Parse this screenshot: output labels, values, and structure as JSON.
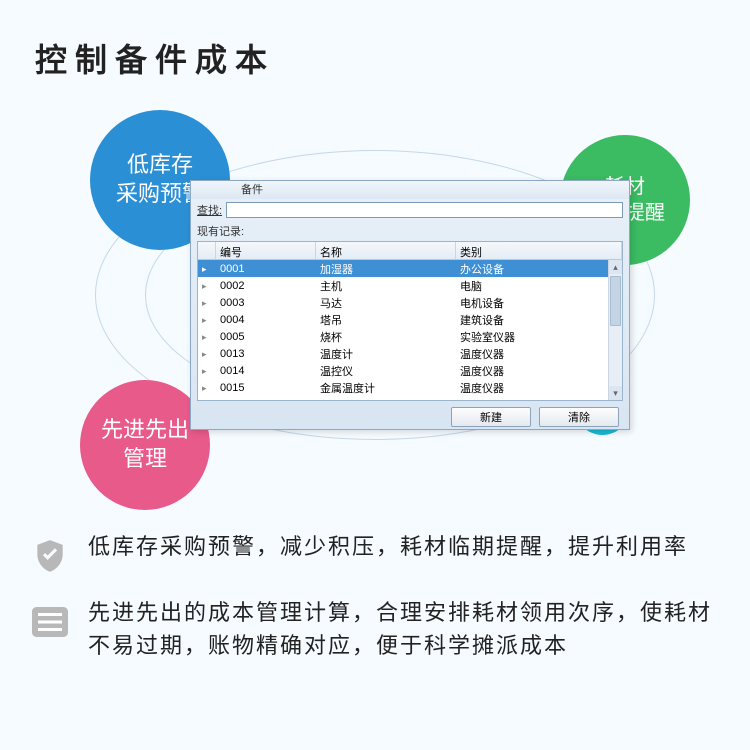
{
  "title": "控制备件成本",
  "bubbles": {
    "blue": {
      "line1": "低库存",
      "line2": "采购预警",
      "color": "#2a8fd4"
    },
    "green": {
      "line1": "耗材",
      "line2": "临期提醒",
      "color": "#3bbb62"
    },
    "pink": {
      "line1": "先进先出",
      "line2": "管理",
      "color": "#e85a8a"
    },
    "cyan": {
      "color": "#1cb8d4"
    }
  },
  "dialog": {
    "title": "备件",
    "search_label": "查找:",
    "search_value": "",
    "records_label": "现有记录:",
    "columns": {
      "id": "编号",
      "name": "名称",
      "cat": "类别"
    },
    "rows": [
      {
        "id": "0001",
        "name": "加湿器",
        "cat": "办公设备",
        "selected": true
      },
      {
        "id": "0002",
        "name": "主机",
        "cat": "电脑",
        "selected": false
      },
      {
        "id": "0003",
        "name": "马达",
        "cat": "电机设备",
        "selected": false
      },
      {
        "id": "0004",
        "name": "塔吊",
        "cat": "建筑设备",
        "selected": false
      },
      {
        "id": "0005",
        "name": "烧杯",
        "cat": "实验室仪器",
        "selected": false
      },
      {
        "id": "0013",
        "name": "温度计",
        "cat": "温度仪器",
        "selected": false
      },
      {
        "id": "0014",
        "name": "温控仪",
        "cat": "温度仪器",
        "selected": false
      },
      {
        "id": "0015",
        "name": "金属温度计",
        "cat": "温度仪器",
        "selected": false
      }
    ],
    "buttons": {
      "new": "新建",
      "clear": "清除"
    }
  },
  "features": [
    {
      "icon": "shield",
      "text": "低库存采购预警，减少积压，耗材临期提醒，提升利用率"
    },
    {
      "icon": "list",
      "text": "先进先出的成本管理计算，合理安排耗材领用次序，使耗材不易过期，账物精确对应，便于科学摊派成本"
    }
  ],
  "styling": {
    "page_bg": "#f5fbff",
    "title_fontsize": 32,
    "title_color": "#222222",
    "feature_fontsize": 22,
    "orbit_color": "#c5d8e8",
    "dialog_border": "#8ba8c4",
    "table_select_bg": "#3f8fd4"
  }
}
